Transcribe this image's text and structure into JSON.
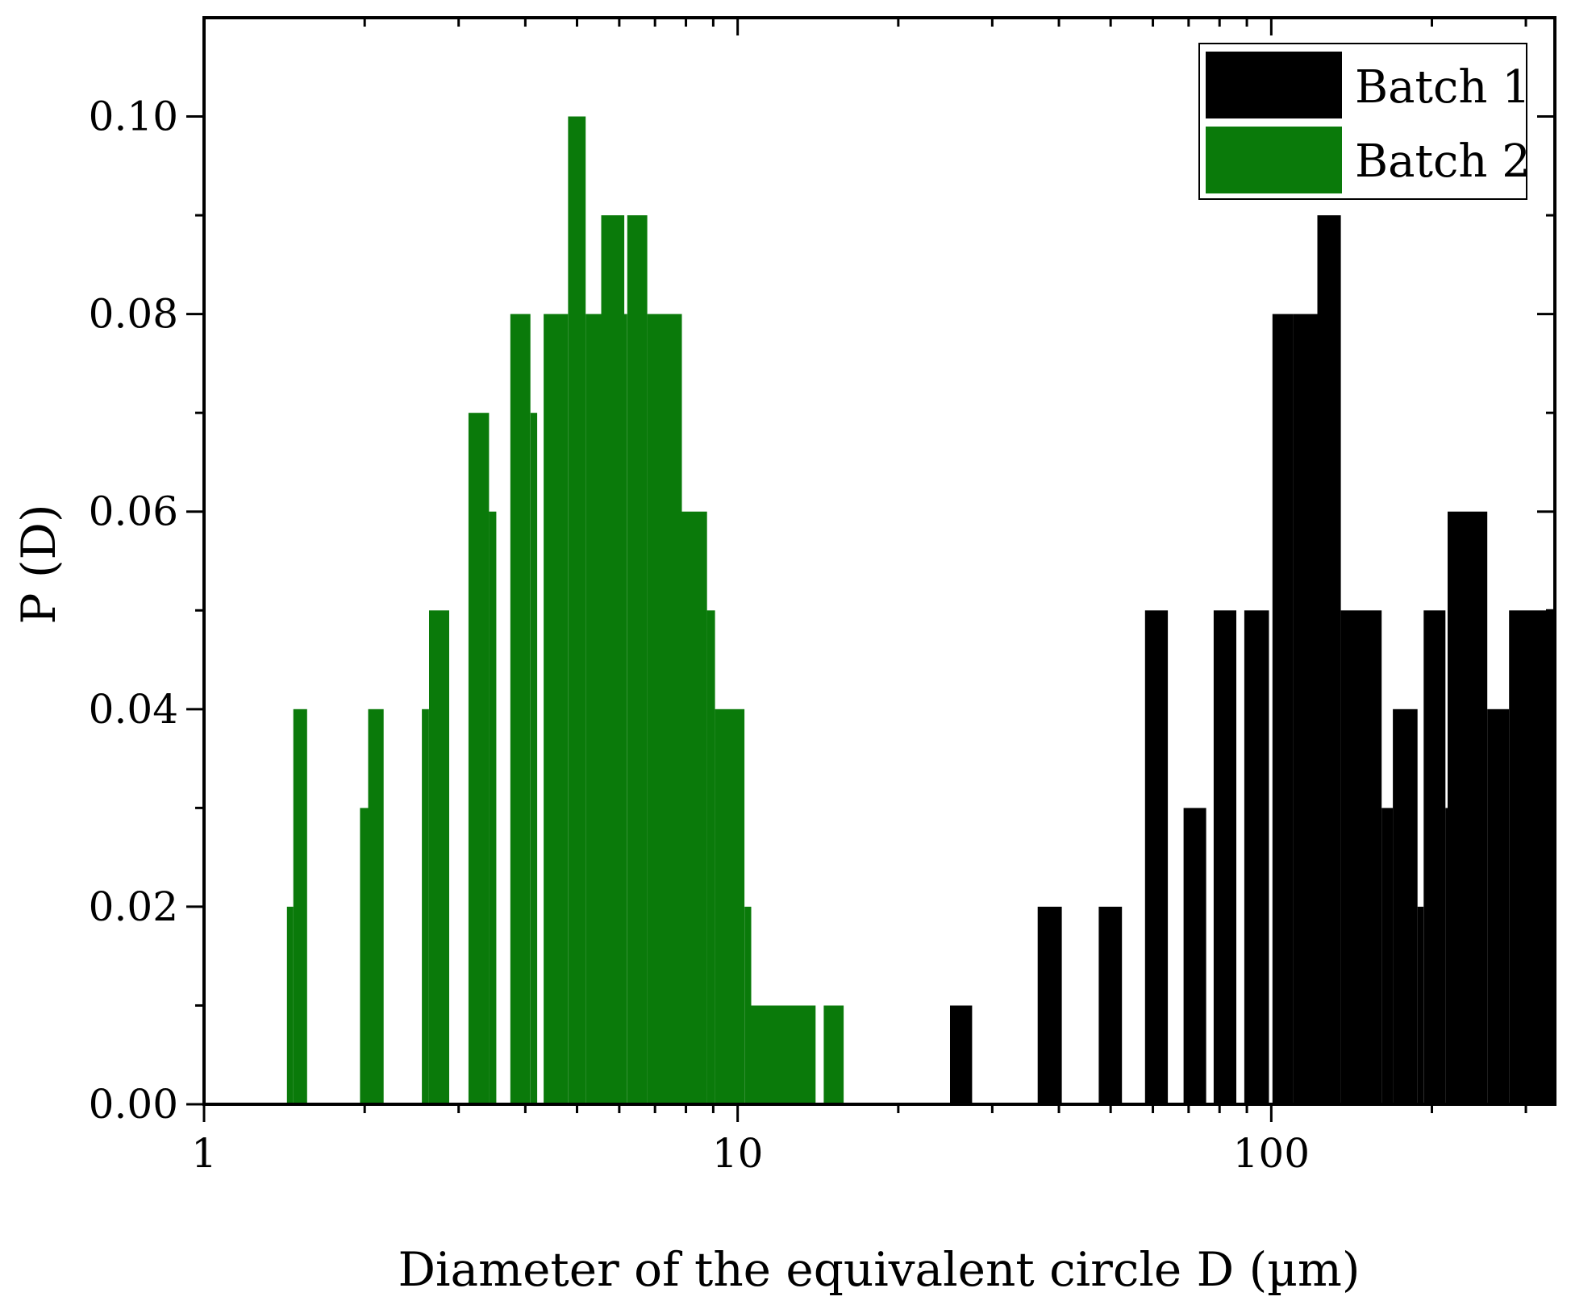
{
  "chart_data": {
    "type": "bar",
    "title": "",
    "xlabel": "Diameter of the equivalent circle D (µm)",
    "ylabel": "P (D)",
    "xscale": "log",
    "xlim": [
      1,
      340
    ],
    "ylim": [
      0,
      0.11
    ],
    "x_tick_labels": [
      "1",
      "10",
      "100"
    ],
    "y_tick_labels": [
      "0.00",
      "0.02",
      "0.04",
      "0.06",
      "0.08",
      "0.10"
    ],
    "legend_position": "top-right",
    "legend": [
      "Batch 1",
      "Batch 2"
    ],
    "series": [
      {
        "name": "Batch 2",
        "color": "#0a7a0a",
        "bins": [
          {
            "x0": 1.43,
            "x1": 1.47,
            "value": 0.02
          },
          {
            "x0": 1.47,
            "x1": 1.56,
            "value": 0.04
          },
          {
            "x0": 1.96,
            "x1": 2.03,
            "value": 0.03
          },
          {
            "x0": 2.03,
            "x1": 2.17,
            "value": 0.04
          },
          {
            "x0": 2.56,
            "x1": 2.64,
            "value": 0.04
          },
          {
            "x0": 2.64,
            "x1": 2.88,
            "value": 0.05
          },
          {
            "x0": 3.13,
            "x1": 3.42,
            "value": 0.07
          },
          {
            "x0": 3.42,
            "x1": 3.53,
            "value": 0.06
          },
          {
            "x0": 3.75,
            "x1": 4.09,
            "value": 0.08
          },
          {
            "x0": 4.09,
            "x1": 4.21,
            "value": 0.07
          },
          {
            "x0": 4.33,
            "x1": 4.81,
            "value": 0.08
          },
          {
            "x0": 4.81,
            "x1": 5.19,
            "value": 0.1
          },
          {
            "x0": 5.19,
            "x1": 5.55,
            "value": 0.08
          },
          {
            "x0": 5.55,
            "x1": 6.13,
            "value": 0.09
          },
          {
            "x0": 6.13,
            "x1": 6.21,
            "value": 0.08
          },
          {
            "x0": 6.21,
            "x1": 6.77,
            "value": 0.09
          },
          {
            "x0": 6.77,
            "x1": 7.86,
            "value": 0.08
          },
          {
            "x0": 7.86,
            "x1": 8.76,
            "value": 0.06
          },
          {
            "x0": 8.76,
            "x1": 9.07,
            "value": 0.05
          },
          {
            "x0": 9.07,
            "x1": 10.3,
            "value": 0.04
          },
          {
            "x0": 10.3,
            "x1": 10.6,
            "value": 0.02
          },
          {
            "x0": 10.6,
            "x1": 14.0,
            "value": 0.01
          },
          {
            "x0": 14.5,
            "x1": 15.8,
            "value": 0.01
          }
        ]
      },
      {
        "name": "Batch 1",
        "color": "#000000",
        "bins": [
          {
            "x0": 25.0,
            "x1": 27.5,
            "value": 0.01
          },
          {
            "x0": 36.5,
            "x1": 40.5,
            "value": 0.02
          },
          {
            "x0": 47.5,
            "x1": 52.5,
            "value": 0.02
          },
          {
            "x0": 58.0,
            "x1": 64.0,
            "value": 0.05
          },
          {
            "x0": 68.5,
            "x1": 75.5,
            "value": 0.03
          },
          {
            "x0": 78.0,
            "x1": 86.0,
            "value": 0.05
          },
          {
            "x0": 89.0,
            "x1": 99.0,
            "value": 0.05
          },
          {
            "x0": 100.5,
            "x1": 110.0,
            "value": 0.08
          },
          {
            "x0": 110.0,
            "x1": 122.0,
            "value": 0.08
          },
          {
            "x0": 122.0,
            "x1": 135.0,
            "value": 0.09
          },
          {
            "x0": 135.0,
            "x1": 161.0,
            "value": 0.05
          },
          {
            "x0": 161.0,
            "x1": 169.0,
            "value": 0.03
          },
          {
            "x0": 169.0,
            "x1": 188.0,
            "value": 0.04
          },
          {
            "x0": 188.0,
            "x1": 193.0,
            "value": 0.02
          },
          {
            "x0": 193.0,
            "x1": 212.0,
            "value": 0.05
          },
          {
            "x0": 212.0,
            "x1": 214.0,
            "value": 0.03
          },
          {
            "x0": 214.0,
            "x1": 254.0,
            "value": 0.06
          },
          {
            "x0": 254.0,
            "x1": 279.0,
            "value": 0.04
          },
          {
            "x0": 279.0,
            "x1": 340.0,
            "value": 0.05
          }
        ]
      }
    ]
  }
}
